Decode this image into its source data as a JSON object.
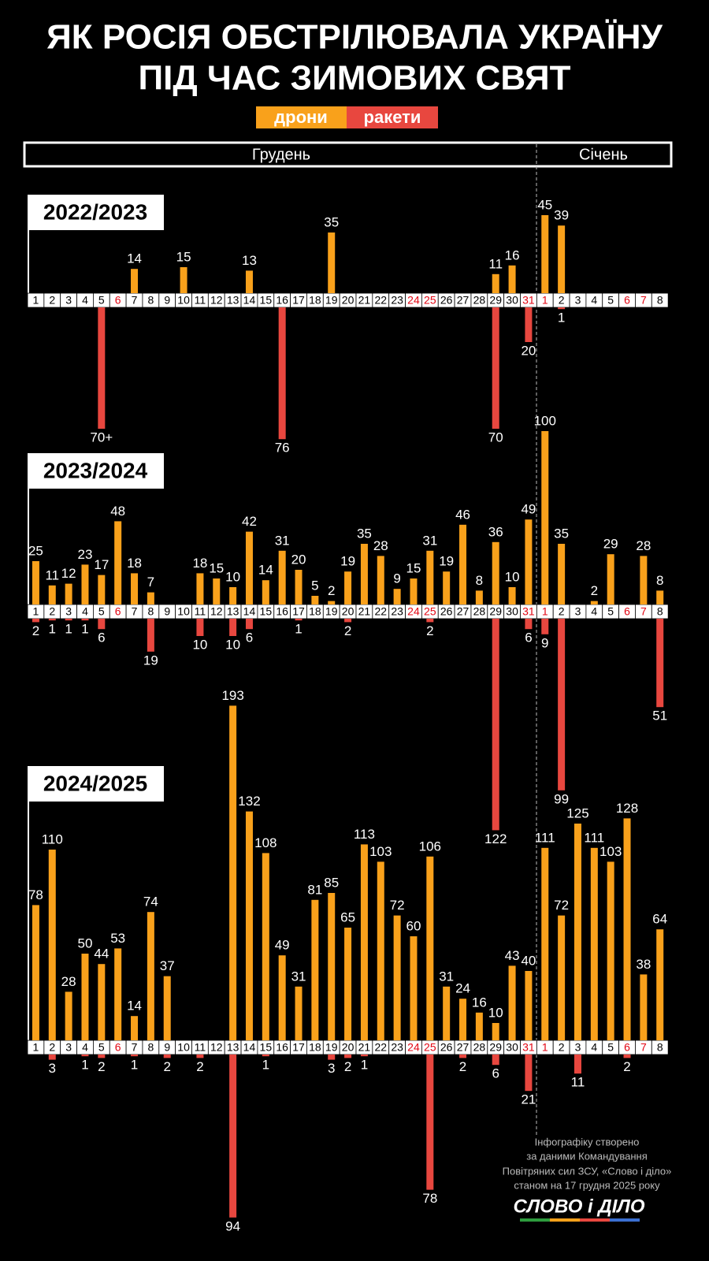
{
  "title_lines": [
    "ЯК РОСІЯ ОБСТРІЛЮВАЛА УКРАЇНУ",
    "ПІД ЧАС ЗИМОВИХ СВЯТ"
  ],
  "months": [
    "Грудень",
    "Січень"
  ],
  "footnote": [
    "Інфографіку створено",
    "за даними Командування",
    "Повітряних сил ЗСУ, «Слово і діло»",
    "станом на 17 грудня 2025 року"
  ],
  "logo": "СЛОВО і ДІЛО",
  "chart_data": [
    {
      "type": "bar",
      "title": "2022/2023",
      "categories": [
        1,
        2,
        3,
        4,
        5,
        6,
        7,
        8,
        9,
        10,
        11,
        12,
        13,
        14,
        15,
        16,
        17,
        18,
        19,
        20,
        21,
        22,
        23,
        24,
        25,
        26,
        27,
        28,
        29,
        30,
        31,
        1,
        2,
        3,
        4,
        5,
        6,
        7,
        8
      ],
      "category_colors": [
        "#000",
        "#000",
        "#000",
        "#000",
        "#000",
        "#e30613",
        "#000",
        "#000",
        "#000",
        "#000",
        "#000",
        "#000",
        "#000",
        "#000",
        "#000",
        "#000",
        "#000",
        "#000",
        "#000",
        "#000",
        "#000",
        "#000",
        "#000",
        "#e30613",
        "#e30613",
        "#000",
        "#000",
        "#000",
        "#000",
        "#000",
        "#e30613",
        "#e30613",
        "#000",
        "#000",
        "#000",
        "#000",
        "#e30613",
        "#e30613",
        "#000"
      ],
      "series": [
        {
          "name": "дрони",
          "color": "#f9a11b",
          "values": [
            null,
            null,
            null,
            null,
            null,
            null,
            14,
            null,
            null,
            15,
            null,
            null,
            null,
            13,
            null,
            null,
            null,
            null,
            35,
            null,
            null,
            null,
            null,
            null,
            null,
            null,
            null,
            null,
            11,
            16,
            null,
            45,
            39,
            null,
            null,
            null,
            null,
            null,
            null
          ]
        },
        {
          "name": "ракети",
          "color": "#e8473f",
          "values": [
            null,
            null,
            null,
            null,
            70,
            null,
            null,
            null,
            null,
            null,
            null,
            null,
            null,
            null,
            null,
            76,
            null,
            null,
            null,
            null,
            null,
            null,
            null,
            null,
            null,
            null,
            null,
            null,
            70,
            null,
            20,
            null,
            1,
            null,
            null,
            null,
            null,
            null,
            null
          ],
          "value_labels": [
            null,
            null,
            null,
            null,
            "70+",
            null,
            null,
            null,
            null,
            null,
            null,
            null,
            null,
            null,
            null,
            null,
            null,
            null,
            null,
            null,
            null,
            null,
            null,
            null,
            null,
            null,
            null,
            null,
            null,
            null,
            null,
            null,
            null,
            null,
            null,
            null,
            null,
            null,
            null
          ]
        }
      ]
    },
    {
      "type": "bar",
      "title": "2023/2024",
      "categories": [
        1,
        2,
        3,
        4,
        5,
        6,
        7,
        8,
        9,
        10,
        11,
        12,
        13,
        14,
        15,
        16,
        17,
        18,
        19,
        20,
        21,
        22,
        23,
        24,
        25,
        26,
        27,
        28,
        29,
        30,
        31,
        1,
        2,
        3,
        4,
        5,
        6,
        7,
        8
      ],
      "category_colors": [
        "#000",
        "#000",
        "#000",
        "#000",
        "#000",
        "#e30613",
        "#000",
        "#000",
        "#000",
        "#000",
        "#000",
        "#000",
        "#000",
        "#000",
        "#000",
        "#000",
        "#000",
        "#000",
        "#000",
        "#000",
        "#000",
        "#000",
        "#000",
        "#e30613",
        "#e30613",
        "#000",
        "#000",
        "#000",
        "#000",
        "#000",
        "#e30613",
        "#e30613",
        "#000",
        "#000",
        "#000",
        "#000",
        "#e30613",
        "#e30613",
        "#000"
      ],
      "series": [
        {
          "name": "дрони",
          "color": "#f9a11b",
          "values": [
            25,
            11,
            12,
            23,
            17,
            48,
            18,
            7,
            null,
            null,
            18,
            15,
            10,
            42,
            14,
            31,
            20,
            5,
            2,
            19,
            35,
            28,
            9,
            15,
            31,
            19,
            46,
            8,
            36,
            10,
            49,
            100,
            35,
            null,
            2,
            29,
            null,
            28,
            8
          ]
        },
        {
          "name": "ракети",
          "color": "#e8473f",
          "values": [
            2,
            1,
            1,
            1,
            6,
            null,
            null,
            19,
            null,
            null,
            10,
            null,
            10,
            6,
            null,
            null,
            1,
            null,
            null,
            2,
            null,
            null,
            null,
            null,
            2,
            null,
            null,
            null,
            122,
            null,
            6,
            9,
            99,
            null,
            null,
            null,
            null,
            null,
            51
          ]
        }
      ]
    },
    {
      "type": "bar",
      "title": "2024/2025",
      "categories": [
        1,
        2,
        3,
        4,
        5,
        6,
        7,
        8,
        9,
        10,
        11,
        12,
        13,
        14,
        15,
        16,
        17,
        18,
        19,
        20,
        21,
        22,
        23,
        24,
        25,
        26,
        27,
        28,
        29,
        30,
        31,
        1,
        2,
        3,
        4,
        5,
        6,
        7,
        8
      ],
      "category_colors": [
        "#000",
        "#000",
        "#000",
        "#000",
        "#000",
        "#e30613",
        "#000",
        "#000",
        "#000",
        "#000",
        "#000",
        "#000",
        "#000",
        "#000",
        "#000",
        "#000",
        "#000",
        "#000",
        "#000",
        "#000",
        "#000",
        "#000",
        "#000",
        "#e30613",
        "#e30613",
        "#000",
        "#000",
        "#000",
        "#000",
        "#000",
        "#e30613",
        "#e30613",
        "#000",
        "#000",
        "#000",
        "#000",
        "#e30613",
        "#e30613",
        "#000"
      ],
      "series": [
        {
          "name": "дрони",
          "color": "#f9a11b",
          "values": [
            78,
            110,
            28,
            50,
            44,
            53,
            14,
            74,
            37,
            null,
            null,
            null,
            193,
            132,
            108,
            49,
            31,
            81,
            85,
            65,
            113,
            103,
            72,
            60,
            106,
            31,
            24,
            16,
            10,
            43,
            40,
            111,
            72,
            125,
            111,
            103,
            128,
            38,
            64
          ]
        },
        {
          "name": "ракети",
          "color": "#e8473f",
          "values": [
            null,
            3,
            null,
            1,
            2,
            null,
            1,
            null,
            2,
            null,
            2,
            null,
            94,
            null,
            1,
            null,
            null,
            null,
            3,
            2,
            1,
            null,
            null,
            null,
            78,
            null,
            2,
            null,
            6,
            null,
            21,
            null,
            null,
            11,
            null,
            null,
            2,
            null,
            null
          ]
        }
      ]
    }
  ]
}
